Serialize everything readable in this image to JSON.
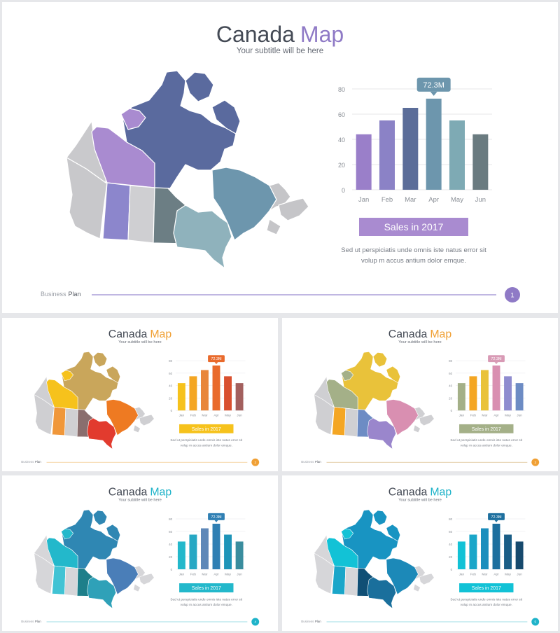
{
  "slides": [
    {
      "title_main": "Canada",
      "title_accent": "Map",
      "subtitle": "Your subtitle will be here",
      "footer_left": "Business",
      "footer_right": "Plan",
      "page_number": "1",
      "banner": "Sales in 2017",
      "callout": "72.3M",
      "description_line1": "Sed ut perspiciatis unde omnis iste natus error sit",
      "description_line2": "volup m accus antium dolor emque.",
      "colors": {
        "accent": "#8f7ac6",
        "banner": "#a98bd0",
        "callout": "#6d96ad",
        "line": "#9a8cd0",
        "bars": [
          "#9a7fc9",
          "#8b82c6",
          "#5b6d99",
          "#6d96ad",
          "#7eaab4",
          "#6a7b80"
        ],
        "regions": {
          "north": "#5a6a9e",
          "nwt": "#a98bd0",
          "yukon": "#c9c9cc",
          "bc": "#c8c8cb",
          "alberta": "#8c86cc",
          "sask": "#cfcfd2",
          "manitoba": "#6c7e84",
          "ontario": "#8fb2bc",
          "quebec": "#6d96ad",
          "atlantic": "#c5c5c8",
          "nfld": "#c5c5c8",
          "islands": "#5a6a9e",
          "westislands": "#a98bd0"
        }
      }
    },
    {
      "title_main": "Canada",
      "title_accent": "Map",
      "subtitle": "Your subtitle will be here",
      "footer_left": "Business",
      "footer_right": "Plan",
      "page_number": "2",
      "banner": "Sales in 2017",
      "callout": "72.3M",
      "description_line1": "Sed ut perspiciatis unde omnis iste natus error sit",
      "description_line2": "volup m accus antium dolor emque.",
      "colors": {
        "accent": "#f0a035",
        "banner": "#f6c21c",
        "callout": "#e96a2c",
        "line": "#f2c07a",
        "bars": [
          "#f6c21c",
          "#f4a623",
          "#e8863b",
          "#e96a2c",
          "#d9502f",
          "#a3605e"
        ],
        "regions": {
          "north": "#c9a65b",
          "nwt": "#f6c21c",
          "yukon": "#cfcfd2",
          "bc": "#cfcfd2",
          "alberta": "#f0973a",
          "sask": "#d0d0d3",
          "manitoba": "#8a6e6e",
          "ontario": "#e23b2e",
          "quebec": "#ee7a22",
          "atlantic": "#cfcfd2",
          "nfld": "#cfcfd2",
          "islands": "#c9a65b",
          "westislands": "#f6c21c"
        }
      }
    },
    {
      "title_main": "Canada",
      "title_accent": "Map",
      "subtitle": "Your subtitle will be here",
      "footer_left": "Business",
      "footer_right": "Plan",
      "page_number": "3",
      "banner": "Sales in 2017",
      "callout": "72.3M",
      "description_line1": "Sed ut perspiciatis unde omnis iste natus error sit",
      "description_line2": "volup m accus antium dolor emque.",
      "colors": {
        "accent": "#f0a035",
        "banner": "#a4b088",
        "callout": "#d89ab5",
        "line": "#d4b37a",
        "bars": [
          "#a4b088",
          "#f4a623",
          "#e9c23a",
          "#d98fb1",
          "#8f8ccf",
          "#6d8cc4"
        ],
        "regions": {
          "north": "#e9c23a",
          "nwt": "#a4b088",
          "yukon": "#cfcfd2",
          "bc": "#cfcfd2",
          "alberta": "#f4a623",
          "sask": "#d0d0d3",
          "manitoba": "#6d8cc4",
          "ontario": "#9a86cc",
          "quebec": "#d98fb1",
          "atlantic": "#cfcfd2",
          "nfld": "#cfcfd2",
          "islands": "#e9c23a",
          "westislands": "#a4b088"
        }
      }
    },
    {
      "title_main": "Canada",
      "title_accent": "Map",
      "subtitle": "Your subtitle will be here",
      "footer_left": "Business",
      "footer_right": "Plan",
      "page_number": "4",
      "banner": "Sales in 2017",
      "callout": "72.3M",
      "description_line1": "Sed ut perspiciatis unde omnis iste natus error sit",
      "description_line2": "volup m accus antium dolor emque.",
      "colors": {
        "accent": "#1fb3c9",
        "banner": "#23b8cb",
        "callout": "#2f7fb3",
        "line": "#7fd0dd",
        "bars": [
          "#23b8cb",
          "#27a8c4",
          "#5e88b8",
          "#2f7fb3",
          "#1e94b8",
          "#3a8d9e"
        ],
        "regions": {
          "north": "#2f87b3",
          "nwt": "#23b8cb",
          "yukon": "#d6d6d9",
          "bc": "#d6d6d9",
          "alberta": "#41c3d4",
          "sask": "#d6d6d9",
          "manitoba": "#1e7f8a",
          "ontario": "#2fa1b8",
          "quebec": "#4a7eb8",
          "atlantic": "#d6d6d9",
          "nfld": "#d6d6d9",
          "islands": "#2f87b3",
          "westislands": "#23b8cb"
        }
      }
    },
    {
      "title_main": "Canada",
      "title_accent": "Map",
      "subtitle": "Your subtitle will be here",
      "footer_left": "Business",
      "footer_right": "Plan",
      "page_number": "5",
      "banner": "Sales in 2017",
      "callout": "72.3M",
      "description_line1": "Sed ut perspiciatis unde omnis iste natus error sit",
      "description_line2": "volup m accus antium dolor emque.",
      "colors": {
        "accent": "#1fb3c9",
        "banner": "#12c2d6",
        "callout": "#1d6f9e",
        "line": "#7fd0dd",
        "bars": [
          "#12c2d6",
          "#1aa6c9",
          "#1b8ebd",
          "#1d6f9e",
          "#1a5d86",
          "#174a6d"
        ],
        "regions": {
          "north": "#1894c2",
          "nwt": "#12c2d6",
          "yukon": "#d6d6d9",
          "bc": "#d6d6d9",
          "alberta": "#1aa6c9",
          "sask": "#d6d6d9",
          "manitoba": "#104f75",
          "ontario": "#1a6f9c",
          "quebec": "#1c89b8",
          "atlantic": "#d6d6d9",
          "nfld": "#d6d6d9",
          "islands": "#1894c2",
          "westislands": "#12c2d6"
        }
      }
    }
  ],
  "chart_data": {
    "type": "bar",
    "categories": [
      "Jan",
      "Feb",
      "Mar",
      "Apr",
      "May",
      "Jun"
    ],
    "values": [
      44,
      55,
      65,
      72.3,
      55,
      44
    ],
    "yticks": [
      "0",
      "20",
      "40",
      "60",
      "80"
    ],
    "ylim": [
      0,
      80
    ],
    "highlight_index": 3,
    "title": "",
    "xlabel": "",
    "ylabel": ""
  }
}
